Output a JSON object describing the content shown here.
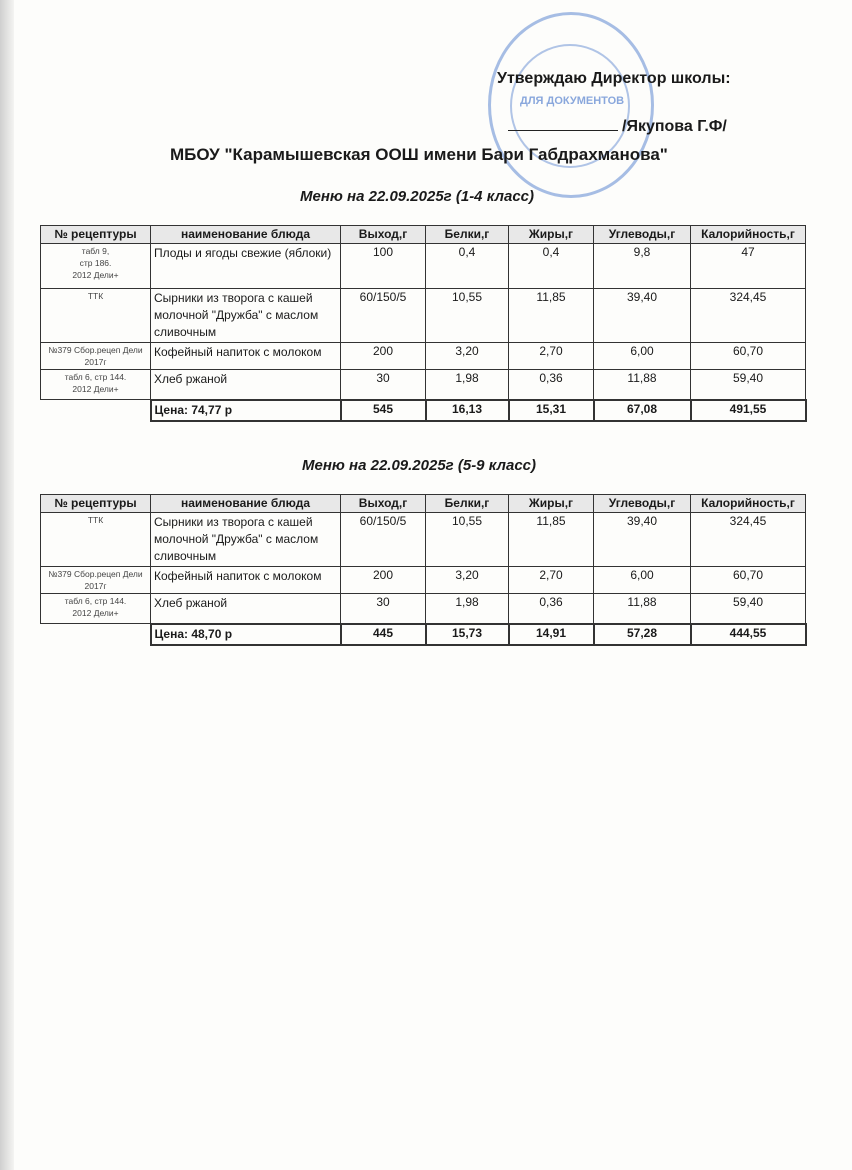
{
  "header": {
    "approve": "Утверждаю Директор школы:",
    "signature": "/Якупова Г.Ф/",
    "school": "МБОУ \"Карамышевская ООШ имени Бари Габдрахманова\"",
    "stamp_text": "ДЛЯ ДОКУМЕНТОВ"
  },
  "columns": [
    "№ рецептуры",
    "наименование блюда",
    "Выход,г",
    "Белки,г",
    "Жиры,г",
    "Углеводы,г",
    "Калорийность,г"
  ],
  "menus": [
    {
      "title": "Меню на 22.09.2025г  (1-4 класс)",
      "rows": [
        [
          "табл 9,\nстр 186.\n2012 Дели+",
          "Плоды и ягоды свежие (яблоки)",
          "100",
          "0,4",
          "0,4",
          "9,8",
          "47"
        ],
        [
          "ТТК",
          "Сырники из творога с кашей молочной \"Дружба\" с маслом сливочным",
          "60/150/5",
          "10,55",
          "11,85",
          "39,40",
          "324,45"
        ],
        [
          "№379 Сбор.рецеп Дели 2017г",
          "Кофейный напиток с молоком",
          "200",
          "3,20",
          "2,70",
          "6,00",
          "60,70"
        ],
        [
          "табл 6, стр 144.\n2012 Дели+",
          "Хлеб ржаной",
          "30",
          "1,98",
          "0,36",
          "11,88",
          "59,40"
        ]
      ],
      "total": [
        "Цена: 74,77 р",
        "545",
        "16,13",
        "15,31",
        "67,08",
        "491,55"
      ]
    },
    {
      "title": "Меню на 22.09.2025г  (5-9 класс)",
      "rows": [
        [
          "ТТК",
          "Сырники из творога с кашей молочной \"Дружба\" с маслом сливочным",
          "60/150/5",
          "10,55",
          "11,85",
          "39,40",
          "324,45"
        ],
        [
          "№379 Сбор.рецеп Дели 2017г",
          "Кофейный напиток с молоком",
          "200",
          "3,20",
          "2,70",
          "6,00",
          "60,70"
        ],
        [
          "табл 6, стр 144.\n2012 Дели+",
          "Хлеб ржаной",
          "30",
          "1,98",
          "0,36",
          "11,88",
          "59,40"
        ]
      ],
      "total": [
        "Цена: 48,70 р",
        "445",
        "15,73",
        "14,91",
        "57,28",
        "444,55"
      ]
    }
  ]
}
